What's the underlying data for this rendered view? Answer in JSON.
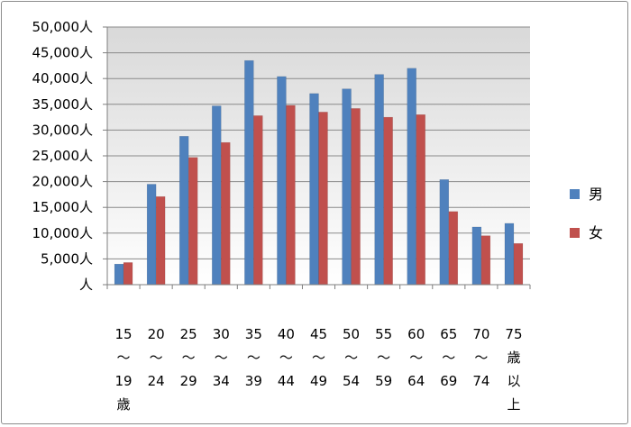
{
  "chart_data": {
    "type": "bar",
    "categories": [
      [
        "15",
        "〜",
        "19",
        "歳"
      ],
      [
        "20",
        "〜",
        "24"
      ],
      [
        "25",
        "〜",
        "29"
      ],
      [
        "30",
        "〜",
        "34"
      ],
      [
        "35",
        "〜",
        "39"
      ],
      [
        "40",
        "〜",
        "44"
      ],
      [
        "45",
        "〜",
        "49"
      ],
      [
        "50",
        "〜",
        "54"
      ],
      [
        "55",
        "〜",
        "59"
      ],
      [
        "60",
        "〜",
        "64"
      ],
      [
        "65",
        "〜",
        "69"
      ],
      [
        "70",
        "〜",
        "74"
      ],
      [
        "75",
        "歳",
        "以",
        "上"
      ]
    ],
    "series": [
      {
        "name": "男",
        "color": "#4f81bd",
        "values": [
          4000,
          19500,
          28800,
          34700,
          43500,
          40400,
          37100,
          38000,
          40800,
          42000,
          20400,
          11200,
          11900
        ]
      },
      {
        "name": "女",
        "color": "#c0504d",
        "values": [
          4300,
          17100,
          24700,
          27600,
          32800,
          34800,
          33500,
          34200,
          32500,
          33000,
          14200,
          9500,
          8000
        ]
      }
    ],
    "ylim": [
      0,
      50000
    ],
    "yticks": [
      "人",
      "5,000人",
      "10,000人",
      "15,000人",
      "20,000人",
      "25,000人",
      "30,000人",
      "35,000人",
      "40,000人",
      "45,000人",
      "50,000人"
    ],
    "grid": true,
    "legend": "right",
    "title": "",
    "xlabel": "",
    "ylabel": ""
  }
}
